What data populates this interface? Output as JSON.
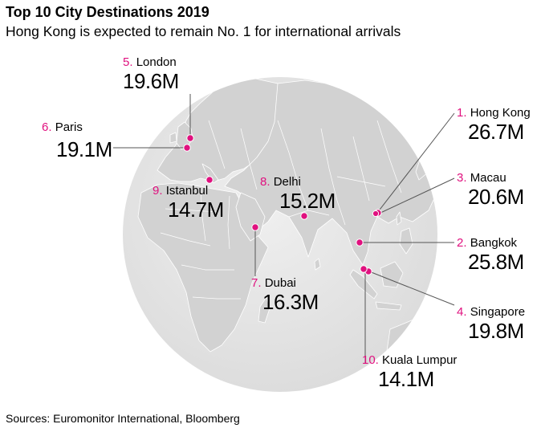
{
  "title": "Top 10 City Destinations 2019",
  "subtitle": "Hong Kong is expected to remain No. 1 for international arrivals",
  "source": "Sources: Euromonitor International, Bloomberg",
  "colors": {
    "marker": "#e0117f",
    "globe": "#e6e6e6",
    "land": "#d2d2d2",
    "border": "#ffffff",
    "leader": "#555555"
  },
  "unit": "millions of international arrivals",
  "cities": [
    {
      "rank": "1.",
      "name": "Hong Kong",
      "value": "26.7M",
      "arrivals": 26.7
    },
    {
      "rank": "2.",
      "name": "Bangkok",
      "value": "25.8M",
      "arrivals": 25.8
    },
    {
      "rank": "3.",
      "name": "Macau",
      "value": "20.6M",
      "arrivals": 20.6
    },
    {
      "rank": "4.",
      "name": "Singapore",
      "value": "19.8M",
      "arrivals": 19.8
    },
    {
      "rank": "5.",
      "name": "London",
      "value": "19.6M",
      "arrivals": 19.6
    },
    {
      "rank": "6.",
      "name": "Paris",
      "value": "19.1M",
      "arrivals": 19.1
    },
    {
      "rank": "7.",
      "name": "Dubai",
      "value": "16.3M",
      "arrivals": 16.3
    },
    {
      "rank": "8.",
      "name": "Delhi",
      "value": "15.2M",
      "arrivals": 15.2
    },
    {
      "rank": "9.",
      "name": "Istanbul",
      "value": "14.7M",
      "arrivals": 14.7
    },
    {
      "rank": "10.",
      "name": "Kuala Lumpur",
      "value": "14.1M",
      "arrivals": 14.1
    }
  ]
}
